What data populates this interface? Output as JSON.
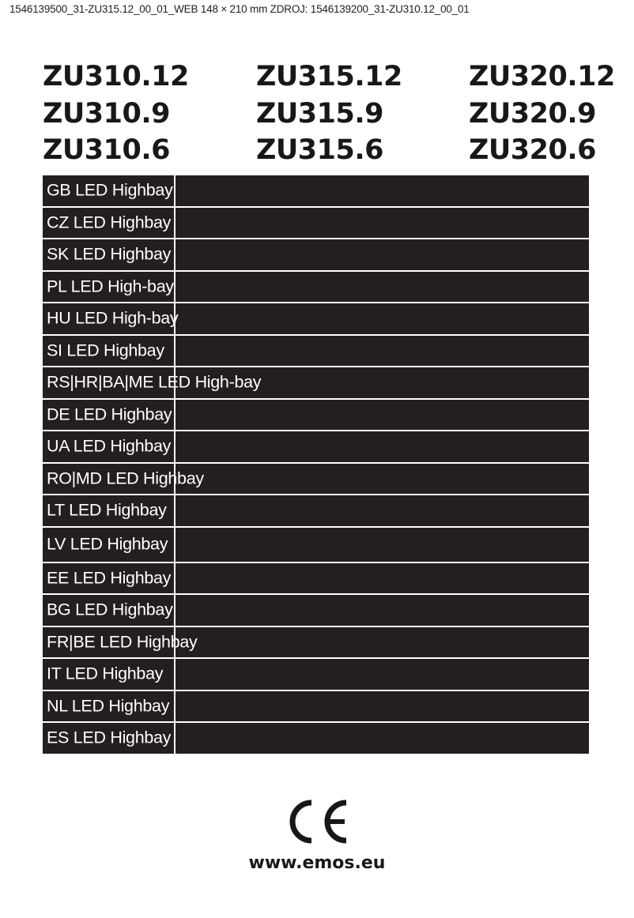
{
  "header_text": "1546139500_31-ZU315.12_00_01_WEB  148 × 210 mm ZDROJ: 1546139200_31-ZU310.12_00_01",
  "models": [
    [
      "ZU310.12",
      "ZU310.9",
      "ZU310.6"
    ],
    [
      "ZU315.12",
      "ZU315.9",
      "ZU315.6"
    ],
    [
      "ZU320.12",
      "ZU320.9",
      "ZU320.6"
    ]
  ],
  "languages": [
    "GB LED Highbay",
    "CZ LED Highbay",
    "SK LED Highbay",
    "PL LED High-bay",
    "HU LED High-bay",
    "SI LED Highbay",
    "RS|HR|BA|ME LED High-bay",
    "DE LED Highbay",
    "UA LED Highbay",
    "RO|MD LED Highbay",
    "LT LED Highbay",
    "LV LED Highbay",
    "EE LED Highbay",
    "BG LED Highbay",
    "FR|BE LED Highbay",
    "IT LED Highbay",
    "NL LED Highbay",
    "ES LED Highbay"
  ],
  "ce_mark": "CE",
  "website": "www.emos.eu",
  "colors": {
    "table_bg": "#231f20",
    "text": "#1a1718"
  }
}
